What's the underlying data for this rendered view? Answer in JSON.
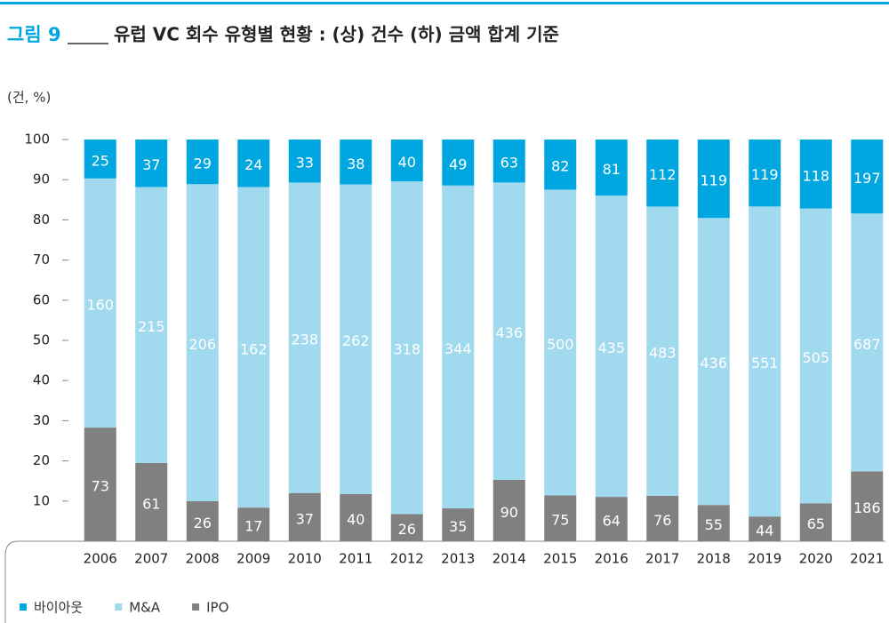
{
  "chart_data": {
    "type": "bar",
    "stacking": "percent",
    "figure_label": "그림 9",
    "title": "유럽 VC 회수 유형별 현황 : (상) 건수 (하) 금액 합계 기준",
    "unit_label": "(건, %)",
    "categories": [
      "2006",
      "2007",
      "2008",
      "2009",
      "2010",
      "2011",
      "2012",
      "2013",
      "2014",
      "2015",
      "2016",
      "2017",
      "2018",
      "2019",
      "2020",
      "2021"
    ],
    "series": [
      {
        "name": "바이아웃",
        "color": "#00a6e0",
        "values": [
          25,
          37,
          29,
          24,
          33,
          38,
          40,
          49,
          63,
          82,
          81,
          112,
          119,
          119,
          118,
          197
        ]
      },
      {
        "name": "M&A",
        "color": "#a1d9ef",
        "values": [
          160,
          215,
          206,
          162,
          238,
          262,
          318,
          344,
          436,
          500,
          435,
          483,
          436,
          551,
          505,
          687
        ]
      },
      {
        "name": "IPO",
        "color": "#808080",
        "values": [
          73,
          61,
          26,
          17,
          37,
          40,
          26,
          35,
          90,
          75,
          64,
          76,
          55,
          44,
          65,
          186
        ]
      }
    ],
    "ylim": [
      0,
      100
    ],
    "yticks": [
      10,
      20,
      30,
      40,
      50,
      60,
      70,
      80,
      90,
      100
    ]
  }
}
